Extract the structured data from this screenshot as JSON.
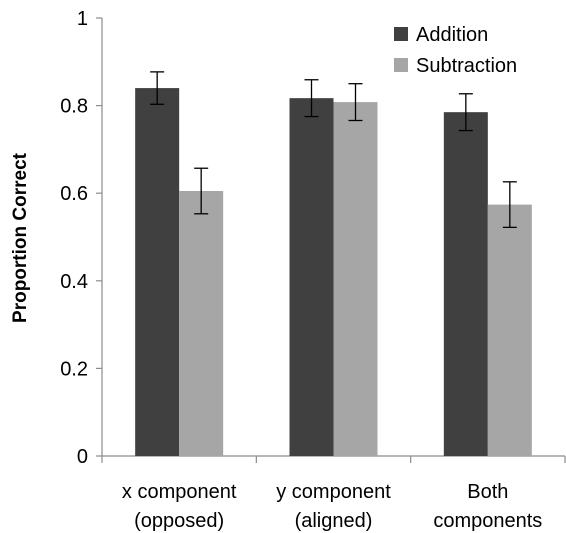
{
  "chart_data": {
    "type": "bar",
    "ylabel": "Proportion Correct",
    "xlabel": "",
    "ylim": [
      0,
      1
    ],
    "yticks": [
      "0",
      "0.2",
      "0.4",
      "0.6",
      "0.8",
      "1"
    ],
    "ytick_values": [
      0,
      0.2,
      0.4,
      0.6,
      0.8,
      1.0
    ],
    "categories": [
      [
        "x component",
        "(opposed)"
      ],
      [
        "y component",
        "(aligned)"
      ],
      [
        "Both",
        "components"
      ]
    ],
    "series": [
      {
        "name": "Addition",
        "color": "#404040",
        "values": [
          0.84,
          0.817,
          0.785
        ],
        "errors": [
          0.037,
          0.042,
          0.042
        ]
      },
      {
        "name": "Subtraction",
        "color": "#a6a6a6",
        "values": [
          0.605,
          0.808,
          0.574
        ],
        "errors": [
          0.052,
          0.042,
          0.052
        ]
      }
    ],
    "grid": false,
    "legend_position": "top-right"
  }
}
